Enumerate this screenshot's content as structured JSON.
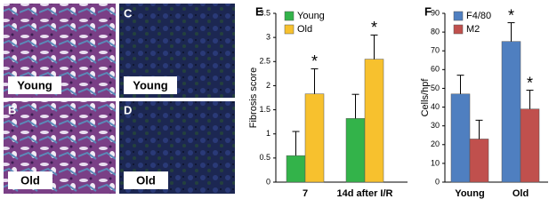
{
  "images": [
    {
      "label": "Young"
    },
    {
      "letter": "B",
      "label": "Old"
    },
    {
      "letter": "C",
      "label": "Young"
    },
    {
      "letter": "D",
      "label": "Old"
    }
  ],
  "chart_data": [
    {
      "type": "bar",
      "panel": "E",
      "y_label": "Fibrosis score",
      "categories": [
        "7",
        "14d after I/R"
      ],
      "series": [
        {
          "name": "Young",
          "color": "#33b34a",
          "values": [
            0.55,
            1.32
          ],
          "errors": [
            0.5,
            0.5
          ],
          "significance": [
            null,
            null
          ]
        },
        {
          "name": "Old",
          "color": "#f7c12e",
          "values": [
            1.83,
            2.55
          ],
          "errors": [
            0.52,
            0.5
          ],
          "significance": [
            "*",
            "*"
          ]
        }
      ],
      "ylim": [
        0,
        3.5
      ],
      "yticks": [
        0,
        0.5,
        1,
        1.5,
        2,
        2.5,
        3,
        3.5
      ],
      "legend": "upper left"
    },
    {
      "type": "bar",
      "panel": "F",
      "y_label": "Cells/hpf",
      "categories": [
        "Young",
        "Old"
      ],
      "series": [
        {
          "name": "F4/80",
          "color": "#4f7fc0",
          "values": [
            47,
            75
          ],
          "errors": [
            10,
            10
          ],
          "significance": [
            null,
            "*"
          ]
        },
        {
          "name": "M2",
          "color": "#c0504d",
          "values": [
            23,
            39
          ],
          "errors": [
            10,
            10
          ],
          "significance": [
            null,
            "*"
          ]
        }
      ],
      "ylim": [
        0,
        90
      ],
      "yticks": [
        0,
        10,
        20,
        30,
        40,
        50,
        60,
        70,
        80,
        90
      ],
      "legend": "upper left"
    }
  ]
}
